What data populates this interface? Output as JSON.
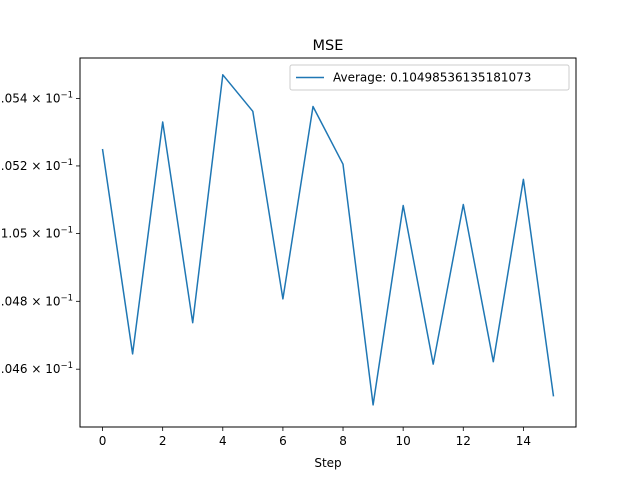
{
  "chart_data": {
    "type": "line",
    "title": "MSE",
    "xlabel": "Step",
    "ylabel": "",
    "xlim": [
      -0.75,
      15.75
    ],
    "ylim": [
      0.10443,
      0.10552
    ],
    "log_scale_y": true,
    "grid": false,
    "legend_position": "top-right",
    "x_ticks": [
      0,
      2,
      4,
      6,
      8,
      10,
      12,
      14
    ],
    "x_tick_labels": [
      "0",
      "2",
      "4",
      "6",
      "8",
      "10",
      "12",
      "14"
    ],
    "y_ticks": [
      0.1046,
      0.1048,
      0.105,
      0.1052,
      0.1054
    ],
    "y_tick_labels": [
      "1.046",
      "1.048",
      "1.05",
      "1.052",
      "1.054"
    ],
    "y_tick_suffix": "×10⁻¹",
    "series": [
      {
        "name": "Average: 0.10498536135181073",
        "color": "#1f77b4",
        "x": [
          0,
          1,
          2,
          3,
          4,
          5,
          6,
          7,
          8,
          9,
          10,
          11,
          12,
          13,
          14,
          15
        ],
        "values": [
          0.10525,
          0.104645,
          0.10533,
          0.104737,
          0.10547,
          0.105362,
          0.104807,
          0.105376,
          0.105205,
          0.104495,
          0.105083,
          0.104615,
          0.105086,
          0.104622,
          0.10516,
          0.10452
        ]
      }
    ]
  }
}
